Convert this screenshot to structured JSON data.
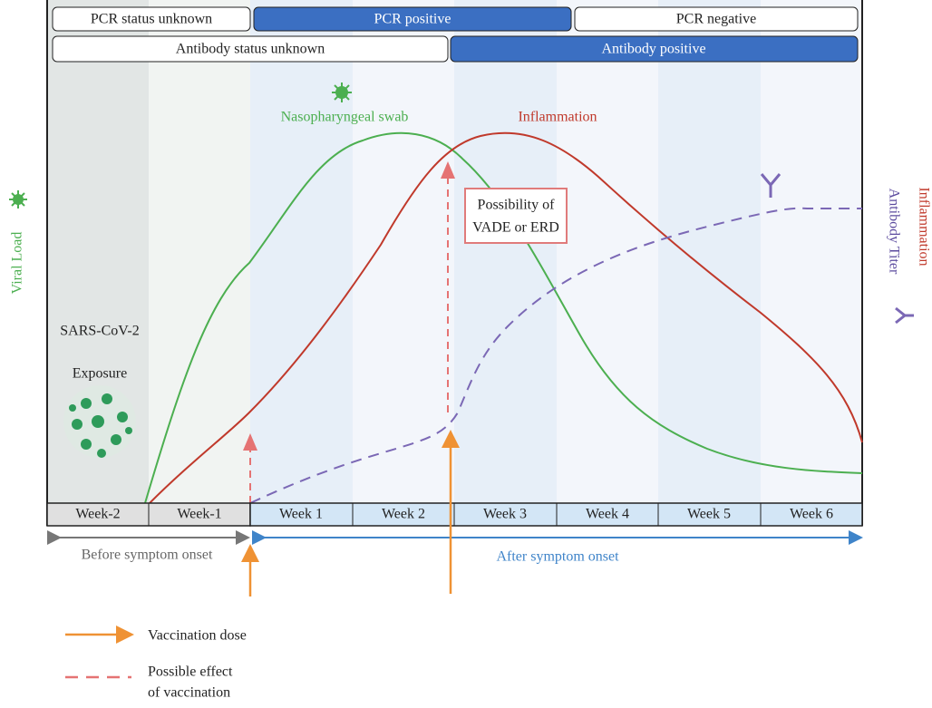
{
  "pcr_status": [
    "PCR status unknown",
    "PCR positive",
    "PCR negative"
  ],
  "antibody_status": [
    "Antibody status unknown",
    "Antibody positive"
  ],
  "weeks": [
    "Week-2",
    "Week-1",
    "Week 1",
    "Week 2",
    "Week 3",
    "Week 4",
    "Week 5",
    "Week 6"
  ],
  "curve_labels": {
    "viral": "Nasopharyngeal swab",
    "inflammation": "Inflammation"
  },
  "axis_labels": {
    "left": "Viral Load",
    "right_titer": "Antibody Titer",
    "right_inflammation": "Inflammation"
  },
  "annotations": {
    "virus": "SARS-CoV-2",
    "exposure": "Exposure",
    "vade": [
      "Possibility of",
      "VADE or ERD"
    ]
  },
  "timeline": {
    "before": "Before symptom onset",
    "after": "After symptom onset"
  },
  "legend": {
    "dose": "Vaccination dose",
    "effect": [
      "Possible effect",
      "of vaccination"
    ]
  }
}
